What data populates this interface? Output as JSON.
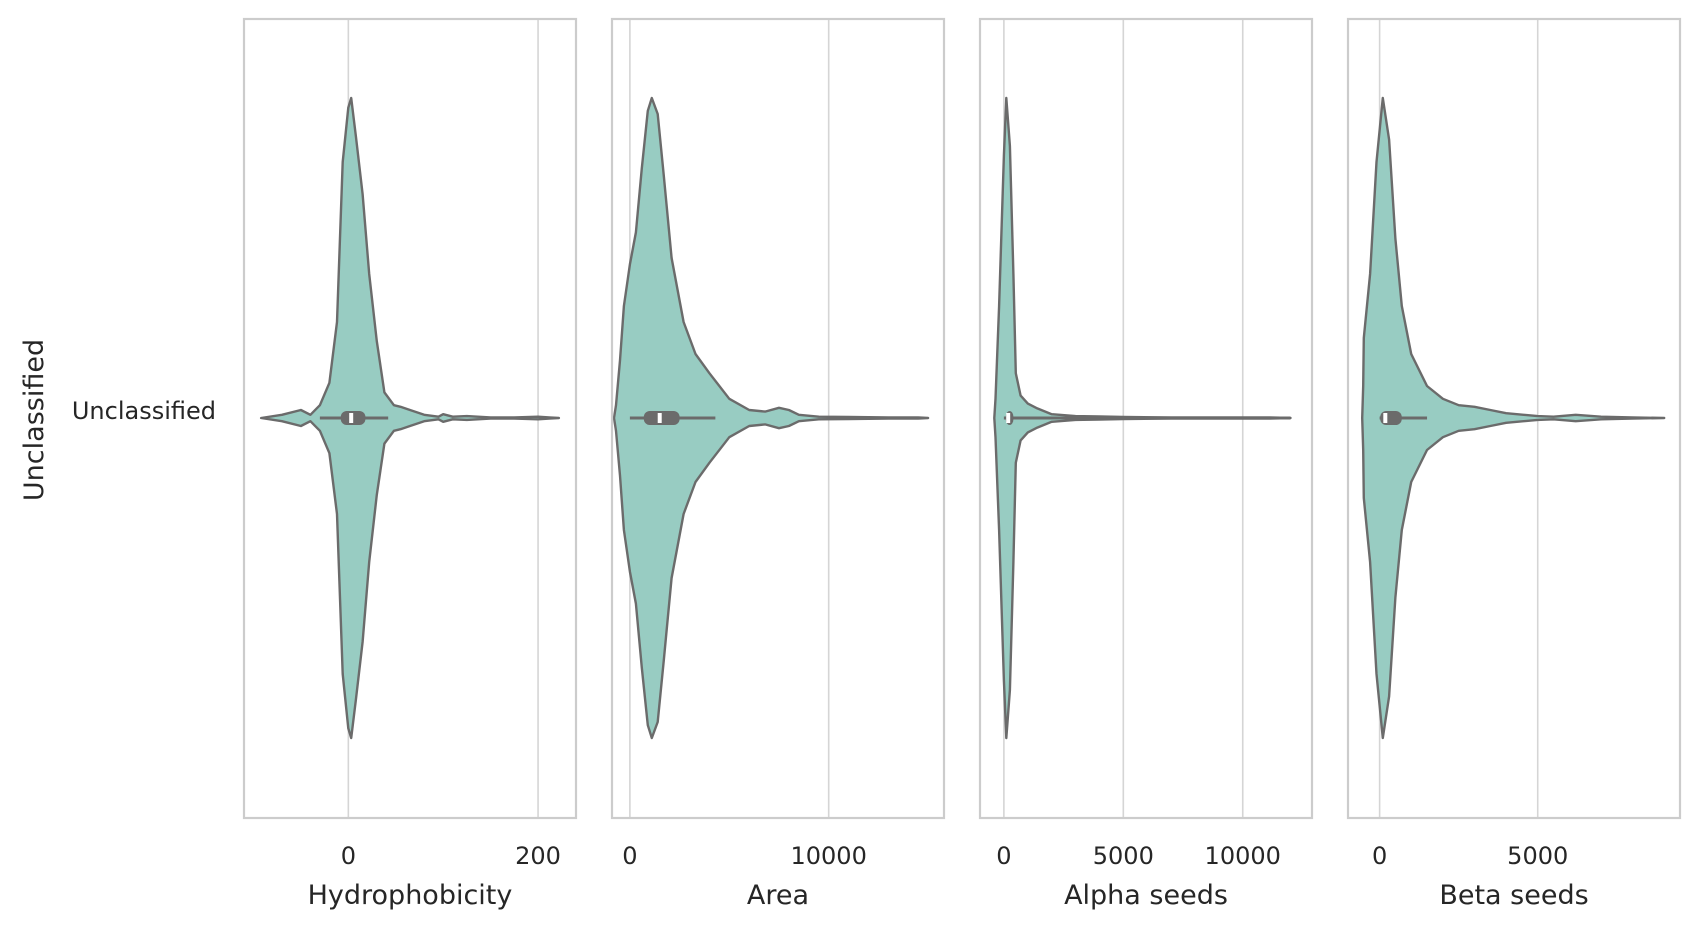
{
  "chart_data": [
    {
      "type": "violin",
      "orientation": "horizontal",
      "category": "Unclassified",
      "ylabel": "Unclassified",
      "xlabel": "Hydrophobicity",
      "xlim": [
        -110,
        240
      ],
      "xticks": [
        0,
        200
      ],
      "grid": true,
      "quartiles": [
        -8,
        3,
        18
      ],
      "median": 3,
      "whisker": [
        -30,
        42
      ],
      "density": [
        [
          -92,
          0.0
        ],
        [
          -70,
          0.01
        ],
        [
          -50,
          0.025
        ],
        [
          -40,
          0.01
        ],
        [
          -30,
          0.04
        ],
        [
          -20,
          0.11
        ],
        [
          -12,
          0.3
        ],
        [
          -6,
          0.8
        ],
        [
          0,
          0.97
        ],
        [
          3,
          1.0
        ],
        [
          8,
          0.88
        ],
        [
          15,
          0.7
        ],
        [
          22,
          0.45
        ],
        [
          30,
          0.24
        ],
        [
          38,
          0.08
        ],
        [
          48,
          0.04
        ],
        [
          55,
          0.035
        ],
        [
          65,
          0.025
        ],
        [
          80,
          0.01
        ],
        [
          95,
          0.004
        ],
        [
          100,
          0.012
        ],
        [
          110,
          0.004
        ],
        [
          125,
          0.006
        ],
        [
          150,
          0.002
        ],
        [
          175,
          0.002
        ],
        [
          200,
          0.004
        ],
        [
          212,
          0.002
        ],
        [
          222,
          0.0
        ]
      ],
      "fill_color": "#98ccc2",
      "edge_color": "#6b6b6b"
    },
    {
      "type": "violin",
      "orientation": "horizontal",
      "category": "Unclassified",
      "xlabel": "Area",
      "xlim": [
        -900,
        15800
      ],
      "xticks": [
        0,
        10000
      ],
      "grid": true,
      "quartiles": [
        700,
        1500,
        2500
      ],
      "median": 1500,
      "whisker": [
        0,
        4300
      ],
      "density": [
        [
          -800,
          0.0
        ],
        [
          -700,
          0.04
        ],
        [
          -500,
          0.18
        ],
        [
          -300,
          0.35
        ],
        [
          0,
          0.48
        ],
        [
          300,
          0.58
        ],
        [
          600,
          0.78
        ],
        [
          900,
          0.96
        ],
        [
          1100,
          1.0
        ],
        [
          1400,
          0.95
        ],
        [
          1700,
          0.76
        ],
        [
          2100,
          0.5
        ],
        [
          2700,
          0.3
        ],
        [
          3300,
          0.2
        ],
        [
          4000,
          0.14
        ],
        [
          5000,
          0.06
        ],
        [
          6000,
          0.025
        ],
        [
          6800,
          0.02
        ],
        [
          7500,
          0.032
        ],
        [
          8000,
          0.025
        ],
        [
          8500,
          0.01
        ],
        [
          9500,
          0.004
        ],
        [
          11000,
          0.003
        ],
        [
          13000,
          0.002
        ],
        [
          14500,
          0.002
        ],
        [
          15000,
          0.0
        ]
      ],
      "fill_color": "#98ccc2",
      "edge_color": "#6b6b6b"
    },
    {
      "type": "violin",
      "orientation": "horizontal",
      "category": "Unclassified",
      "xlabel": "Alpha seeds",
      "xlim": [
        -1000,
        12900
      ],
      "xticks": [
        0,
        5000,
        10000
      ],
      "grid": true,
      "quartiles": [
        80,
        180,
        400
      ],
      "median": 180,
      "whisker": [
        0,
        12000
      ],
      "density": [
        [
          -400,
          0.0
        ],
        [
          -350,
          0.06
        ],
        [
          -200,
          0.35
        ],
        [
          0,
          0.82
        ],
        [
          100,
          1.0
        ],
        [
          250,
          0.85
        ],
        [
          400,
          0.45
        ],
        [
          500,
          0.14
        ],
        [
          700,
          0.07
        ],
        [
          1000,
          0.045
        ],
        [
          1400,
          0.03
        ],
        [
          2000,
          0.012
        ],
        [
          3000,
          0.006
        ],
        [
          4000,
          0.005
        ],
        [
          5000,
          0.003
        ],
        [
          7000,
          0.002
        ],
        [
          9000,
          0.002
        ],
        [
          11000,
          0.002
        ],
        [
          12000,
          0.0
        ]
      ],
      "fill_color": "#98ccc2",
      "edge_color": "#6b6b6b"
    },
    {
      "type": "violin",
      "orientation": "horizontal",
      "category": "Unclassified",
      "xlabel": "Beta seeds",
      "xlim": [
        -1000,
        9500
      ],
      "xticks": [
        0,
        5000
      ],
      "grid": true,
      "quartiles": [
        20,
        180,
        700
      ],
      "median": 180,
      "whisker": [
        0,
        1500
      ],
      "density": [
        [
          -550,
          0.0
        ],
        [
          -520,
          0.1
        ],
        [
          -500,
          0.25
        ],
        [
          -300,
          0.45
        ],
        [
          -100,
          0.8
        ],
        [
          100,
          1.0
        ],
        [
          300,
          0.87
        ],
        [
          500,
          0.56
        ],
        [
          700,
          0.35
        ],
        [
          1000,
          0.2
        ],
        [
          1500,
          0.1
        ],
        [
          2000,
          0.06
        ],
        [
          2500,
          0.04
        ],
        [
          3000,
          0.035
        ],
        [
          3500,
          0.025
        ],
        [
          4000,
          0.015
        ],
        [
          5000,
          0.006
        ],
        [
          5500,
          0.004
        ],
        [
          6200,
          0.01
        ],
        [
          7000,
          0.004
        ],
        [
          8000,
          0.002
        ],
        [
          9000,
          0.0
        ]
      ],
      "fill_color": "#98ccc2",
      "edge_color": "#6b6b6b"
    }
  ]
}
